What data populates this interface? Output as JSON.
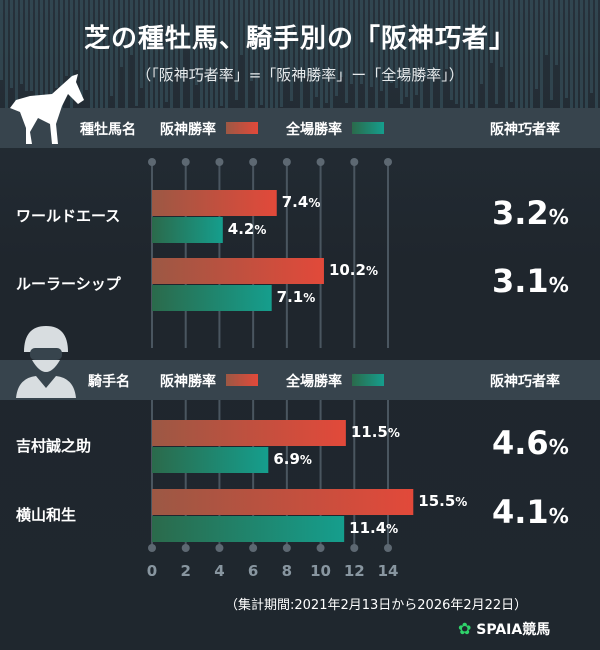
{
  "title": "芝の種牡馬、騎手別の「阪神巧者」",
  "subtitle": "（「阪神巧者率」=「阪神勝率」ー「全場勝率」）",
  "colors": {
    "hanshin": "#e2493a",
    "all": "#159e8d",
    "background": "#1f262d"
  },
  "sire_header": {
    "name": "種牡馬名",
    "hanshin": "阪神勝率",
    "all": "全場勝率",
    "diff": "阪神巧者率"
  },
  "jockey_header": {
    "name": "騎手名",
    "hanshin": "阪神勝率",
    "all": "全場勝率",
    "diff": "阪神巧者率"
  },
  "icons": [
    "horse-icon",
    "jockey-icon",
    "spaia-logo-icon"
  ],
  "chart_data": {
    "type": "bar",
    "orientation": "horizontal",
    "xlim": [
      0,
      14
    ],
    "unit": "%",
    "ticks": [
      "0",
      "2",
      "4",
      "6",
      "8",
      "10",
      "12",
      "14"
    ],
    "groups": [
      {
        "section": "sire",
        "name": "ワールドエース",
        "hanshin": 7.4,
        "all": 4.2,
        "diff": 3.2,
        "hanshin_label": "7.4",
        "all_label": "4.2",
        "diff_label": "3.2"
      },
      {
        "section": "sire",
        "name": "ルーラーシップ",
        "hanshin": 10.2,
        "all": 7.1,
        "diff": 3.1,
        "hanshin_label": "10.2",
        "all_label": "7.1",
        "diff_label": "3.1"
      },
      {
        "section": "jockey",
        "name": "吉村誠之助",
        "hanshin": 11.5,
        "all": 6.9,
        "diff": 4.6,
        "hanshin_label": "11.5",
        "all_label": "6.9",
        "diff_label": "4.6"
      },
      {
        "section": "jockey",
        "name": "横山和生",
        "hanshin": 15.5,
        "all": 11.4,
        "diff": 4.1,
        "hanshin_label": "15.5",
        "all_label": "11.4",
        "diff_label": "4.1"
      }
    ]
  },
  "period": "（集計期間:2021年2月13日から2026年2月22日）",
  "brand": "SPAIA競馬",
  "percent": "%"
}
